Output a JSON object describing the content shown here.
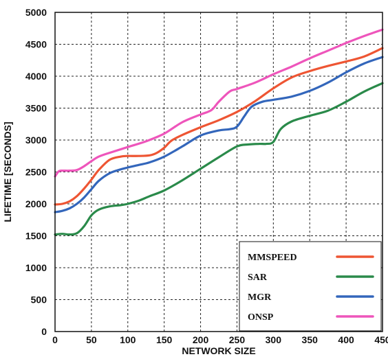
{
  "chart_data": {
    "type": "line",
    "xlabel": "NETWORK SIZE",
    "ylabel": "LIFETIME [SECONDS]",
    "xlim": [
      0,
      450
    ],
    "ylim": [
      0,
      5000
    ],
    "xticks": [
      "0",
      "50",
      "100",
      "150",
      "200",
      "250",
      "300",
      "350",
      "400",
      "450"
    ],
    "yticks": [
      "0",
      "500",
      "1000",
      "1500",
      "2000",
      "2500",
      "3000",
      "3500",
      "4000",
      "4500",
      "5000"
    ],
    "grid": true,
    "legend_position": "bottom-right",
    "series": [
      {
        "name": "MMSPEED",
        "color": "#ee5533",
        "x": [
          0,
          10,
          20,
          30,
          40,
          50,
          60,
          75,
          90,
          100,
          115,
          130,
          140,
          150,
          160,
          175,
          200,
          225,
          250,
          275,
          300,
          325,
          350,
          375,
          400,
          425,
          450
        ],
        "y": [
          1990,
          2000,
          2040,
          2120,
          2240,
          2380,
          2530,
          2690,
          2740,
          2750,
          2750,
          2760,
          2800,
          2880,
          2990,
          3080,
          3200,
          3310,
          3440,
          3610,
          3810,
          3980,
          4080,
          4160,
          4230,
          4310,
          4440
        ]
      },
      {
        "name": "SAR",
        "color": "#2a8a4a",
        "x": [
          0,
          10,
          20,
          30,
          40,
          50,
          60,
          75,
          90,
          100,
          115,
          130,
          150,
          175,
          200,
          225,
          250,
          265,
          280,
          290,
          300,
          310,
          325,
          350,
          375,
          400,
          425,
          450
        ],
        "y": [
          1520,
          1530,
          1520,
          1540,
          1650,
          1820,
          1910,
          1960,
          1980,
          2000,
          2050,
          2120,
          2210,
          2370,
          2550,
          2730,
          2900,
          2930,
          2940,
          2940,
          2970,
          3170,
          3290,
          3380,
          3460,
          3600,
          3760,
          3890
        ]
      },
      {
        "name": "MGR",
        "color": "#3366bb",
        "x": [
          0,
          10,
          20,
          30,
          40,
          50,
          60,
          75,
          90,
          100,
          115,
          130,
          150,
          175,
          200,
          225,
          240,
          250,
          260,
          270,
          285,
          300,
          325,
          350,
          375,
          400,
          425,
          450
        ],
        "y": [
          1870,
          1890,
          1930,
          2000,
          2100,
          2230,
          2360,
          2480,
          2540,
          2570,
          2610,
          2650,
          2740,
          2900,
          3070,
          3150,
          3170,
          3210,
          3370,
          3520,
          3600,
          3630,
          3680,
          3770,
          3900,
          4060,
          4200,
          4300
        ]
      },
      {
        "name": "ONSP",
        "color": "#ee55bb",
        "x": [
          0,
          5,
          10,
          20,
          30,
          40,
          50,
          60,
          75,
          100,
          125,
          150,
          175,
          200,
          215,
          225,
          240,
          250,
          275,
          300,
          325,
          350,
          375,
          400,
          425,
          450
        ],
        "y": [
          2430,
          2510,
          2520,
          2520,
          2530,
          2590,
          2670,
          2740,
          2800,
          2890,
          2980,
          3100,
          3280,
          3400,
          3470,
          3600,
          3760,
          3800,
          3900,
          4030,
          4150,
          4280,
          4400,
          4520,
          4630,
          4730
        ]
      }
    ]
  }
}
